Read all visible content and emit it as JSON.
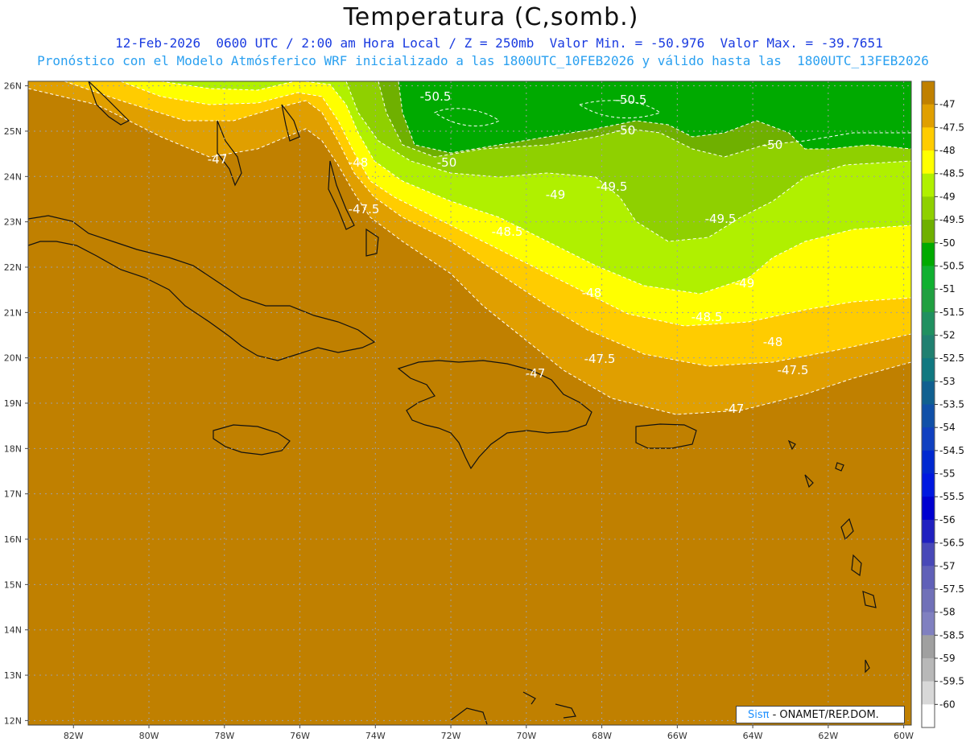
{
  "header": {
    "title": "Temperatura (C,somb.)",
    "subtitle1": "12-Feb-2026  0600 UTC / 2:00 am Hora Local / Z = 250mb  Valor Min. = -50.976  Valor Max. = -39.7651",
    "subtitle2": "Pronóstico con el Modelo Atmósferico WRF inicializado a las 1800UTC_10FEB2026 y válido hasta las  1800UTC_13FEB2026"
  },
  "map": {
    "lat_labels": [
      "26N",
      "25N",
      "24N",
      "23N",
      "22N",
      "21N",
      "20N",
      "19N",
      "18N",
      "17N",
      "16N",
      "15N",
      "14N",
      "13N",
      "12N"
    ],
    "lon_labels": [
      "82W",
      "80W",
      "78W",
      "76W",
      "74W",
      "72W",
      "70W",
      "68W",
      "66W",
      "64W",
      "62W",
      "60W"
    ],
    "lon_range": [
      -83.2,
      -59.8
    ],
    "lat_range": [
      11.9,
      26.1
    ],
    "base_color": "#c08000",
    "contour_labels": [
      "-50.5",
      "-50.5",
      "-50",
      "-50",
      "-50",
      "-49.5",
      "-49.5",
      "-49",
      "-49",
      "-48.5",
      "-48.5",
      "-48",
      "-48",
      "-48",
      "-47.5",
      "-47.5",
      "-47.5",
      "-47",
      "-47",
      "-47"
    ],
    "icons": [
      "coastline-icon"
    ]
  },
  "colorbar": {
    "labels": [
      "-47",
      "-47.5",
      "-48",
      "-48.5",
      "-49",
      "-49.5",
      "-50",
      "-50.5",
      "-51",
      "-51.5",
      "-52",
      "-52.5",
      "-53",
      "-53.5",
      "-54",
      "-54.5",
      "-55",
      "-55.5",
      "-56",
      "-56.5",
      "-57",
      "-57.5",
      "-58",
      "-58.5",
      "-59",
      "-59.5",
      "-60"
    ],
    "colors": [
      "#c08000",
      "#e09f00",
      "#ffcc00",
      "#ffff00",
      "#b0f000",
      "#8fd000",
      "#6fb000",
      "#00aa00",
      "#10b030",
      "#20a040",
      "#209060",
      "#208070",
      "#107880",
      "#106090",
      "#1050a8",
      "#1040c0",
      "#0028d0",
      "#0018e0",
      "#0000d0",
      "#2020c0",
      "#4848b8",
      "#6060b8",
      "#7070b8",
      "#8080c0",
      "#a0a0a0",
      "#b8b8b8",
      "#d8d8d8",
      "#ffffff"
    ]
  },
  "credit": {
    "brand": "Sis",
    "pi": "π",
    "text": " - ONAMET/REP.DOM."
  }
}
